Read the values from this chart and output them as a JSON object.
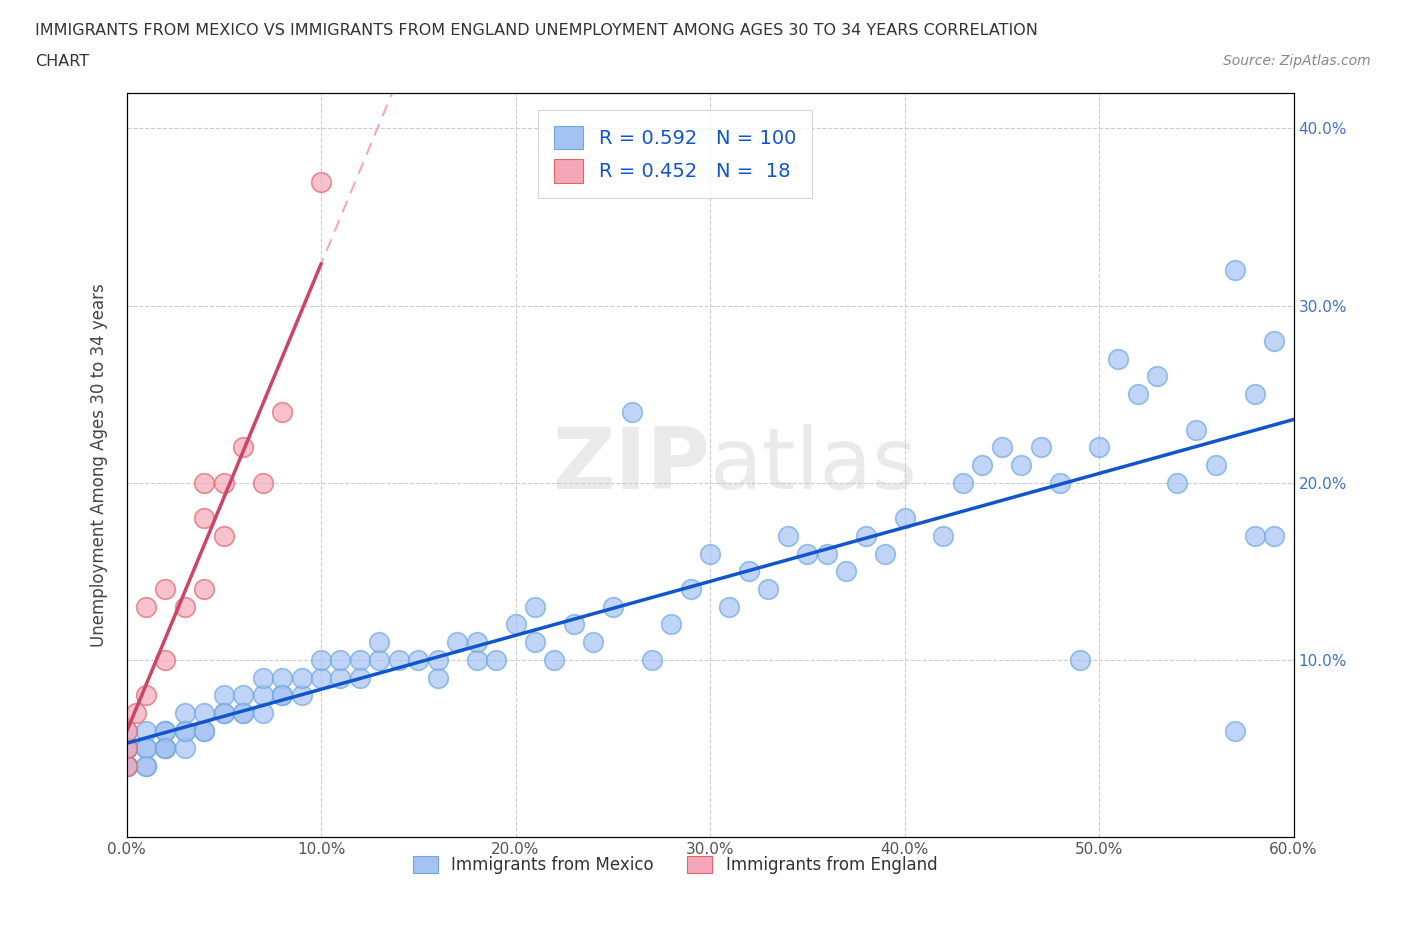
{
  "title_line1": "IMMIGRANTS FROM MEXICO VS IMMIGRANTS FROM ENGLAND UNEMPLOYMENT AMONG AGES 30 TO 34 YEARS CORRELATION",
  "title_line2": "CHART",
  "source_text": "Source: ZipAtlas.com",
  "ylabel": "Unemployment Among Ages 30 to 34 years",
  "xlim": [
    0.0,
    0.6
  ],
  "ylim": [
    0.0,
    0.42
  ],
  "xticks": [
    0.0,
    0.1,
    0.2,
    0.3,
    0.4,
    0.5,
    0.6
  ],
  "xticklabels": [
    "0.0%",
    "10.0%",
    "20.0%",
    "30.0%",
    "40.0%",
    "50.0%",
    "60.0%"
  ],
  "yticks": [
    0.0,
    0.1,
    0.2,
    0.3,
    0.4
  ],
  "right_yticklabels": [
    "",
    "10.0%",
    "20.0%",
    "30.0%",
    "40.0%"
  ],
  "mexico_color": "#a4c2f4",
  "england_color": "#f4a7b9",
  "mexico_edge_color": "#6fa8dc",
  "england_edge_color": "#e06666",
  "mexico_line_color": "#1155cc",
  "england_line_color": "#cc4466",
  "england_dash_color": "#f4a7b9",
  "legend_text_color": "#1155cc",
  "R_mexico": 0.592,
  "N_mexico": 100,
  "R_england": 0.452,
  "N_england": 18,
  "mexico_x": [
    0.0,
    0.0,
    0.0,
    0.0,
    0.0,
    0.0,
    0.0,
    0.0,
    0.0,
    0.0,
    0.01,
    0.01,
    0.01,
    0.01,
    0.01,
    0.02,
    0.02,
    0.02,
    0.02,
    0.02,
    0.03,
    0.03,
    0.03,
    0.03,
    0.04,
    0.04,
    0.04,
    0.05,
    0.05,
    0.05,
    0.06,
    0.06,
    0.06,
    0.07,
    0.07,
    0.07,
    0.08,
    0.08,
    0.08,
    0.09,
    0.09,
    0.1,
    0.1,
    0.11,
    0.11,
    0.12,
    0.12,
    0.13,
    0.13,
    0.14,
    0.15,
    0.16,
    0.16,
    0.17,
    0.18,
    0.18,
    0.19,
    0.2,
    0.21,
    0.21,
    0.22,
    0.23,
    0.24,
    0.25,
    0.26,
    0.27,
    0.28,
    0.29,
    0.3,
    0.31,
    0.32,
    0.33,
    0.34,
    0.35,
    0.36,
    0.37,
    0.38,
    0.39,
    0.4,
    0.42,
    0.43,
    0.44,
    0.45,
    0.46,
    0.47,
    0.48,
    0.49,
    0.5,
    0.51,
    0.52,
    0.53,
    0.54,
    0.55,
    0.56,
    0.57,
    0.57,
    0.58,
    0.58,
    0.59,
    0.59
  ],
  "mexico_y": [
    0.04,
    0.05,
    0.05,
    0.06,
    0.04,
    0.05,
    0.05,
    0.04,
    0.05,
    0.04,
    0.05,
    0.04,
    0.06,
    0.05,
    0.04,
    0.05,
    0.06,
    0.05,
    0.06,
    0.05,
    0.06,
    0.05,
    0.07,
    0.06,
    0.06,
    0.07,
    0.06,
    0.07,
    0.08,
    0.07,
    0.07,
    0.08,
    0.07,
    0.08,
    0.07,
    0.09,
    0.08,
    0.09,
    0.08,
    0.08,
    0.09,
    0.09,
    0.1,
    0.09,
    0.1,
    0.1,
    0.09,
    0.1,
    0.11,
    0.1,
    0.1,
    0.09,
    0.1,
    0.11,
    0.1,
    0.11,
    0.1,
    0.12,
    0.11,
    0.13,
    0.1,
    0.12,
    0.11,
    0.13,
    0.24,
    0.1,
    0.12,
    0.14,
    0.16,
    0.13,
    0.15,
    0.14,
    0.17,
    0.16,
    0.16,
    0.15,
    0.17,
    0.16,
    0.18,
    0.17,
    0.2,
    0.21,
    0.22,
    0.21,
    0.22,
    0.2,
    0.1,
    0.22,
    0.27,
    0.25,
    0.26,
    0.2,
    0.23,
    0.21,
    0.32,
    0.06,
    0.25,
    0.17,
    0.28,
    0.17
  ],
  "england_x": [
    0.0,
    0.0,
    0.0,
    0.005,
    0.01,
    0.01,
    0.02,
    0.02,
    0.03,
    0.04,
    0.04,
    0.04,
    0.05,
    0.05,
    0.06,
    0.07,
    0.08,
    0.1
  ],
  "england_y": [
    0.04,
    0.05,
    0.06,
    0.07,
    0.08,
    0.13,
    0.1,
    0.14,
    0.13,
    0.14,
    0.18,
    0.2,
    0.17,
    0.2,
    0.22,
    0.2,
    0.24,
    0.37
  ],
  "watermark_zip": "ZIP",
  "watermark_atlas": "atlas",
  "background_color": "#ffffff",
  "grid_color": "#cccccc"
}
